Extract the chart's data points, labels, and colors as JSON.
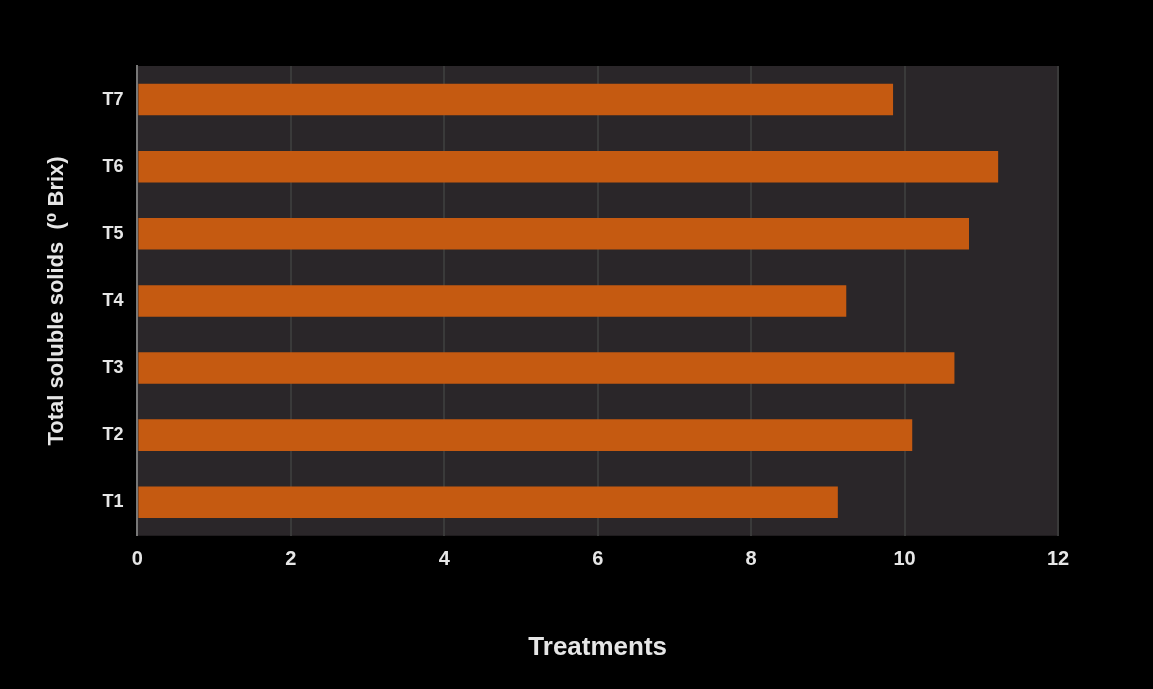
{
  "chart_data": {
    "type": "bar",
    "orientation": "horizontal",
    "xlabel": "Treatments",
    "ylabel": "Total soluble solids  (⁰ Brix)",
    "categories": [
      "T7",
      "T6",
      "T5",
      "T4",
      "T3",
      "T2",
      "T1"
    ],
    "values": [
      9.85,
      11.22,
      10.84,
      9.24,
      10.65,
      10.1,
      9.13
    ],
    "color": "#c55a11",
    "xlim": [
      0,
      12
    ],
    "xticks": [
      0,
      2,
      4,
      6,
      8,
      10,
      12
    ],
    "grid": "x"
  }
}
